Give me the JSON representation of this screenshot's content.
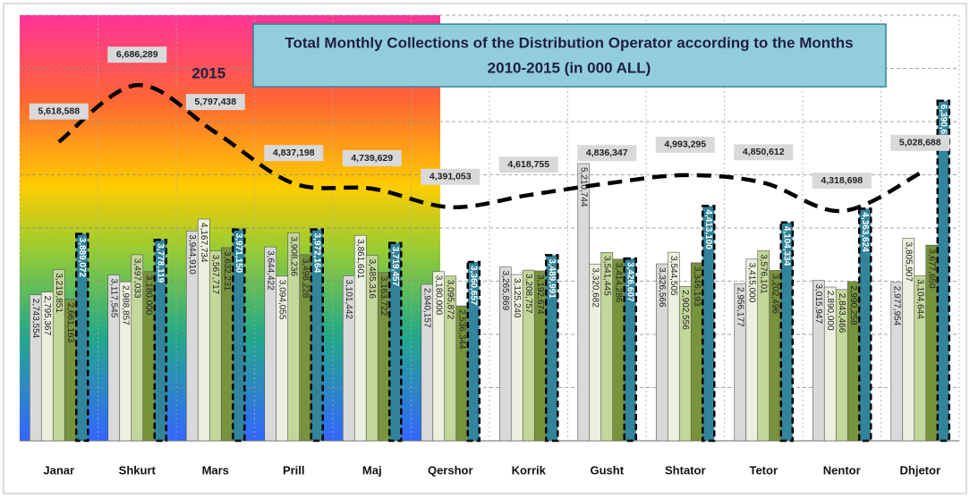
{
  "chart_data": {
    "type": "bar",
    "title": "Total Monthly Collections of the Distribution Operator according to the Months",
    "subtitle": "2010-2015 (in  000 ALL)",
    "annotation": "2015",
    "categories": [
      "Janar",
      "Shkurt",
      "Mars",
      "Prill",
      "Maj",
      "Qershor",
      "Korrik",
      "Gusht",
      "Shtator",
      "Tetor",
      "Nentor",
      "Dhjetor"
    ],
    "ylim": [
      0,
      8000000
    ],
    "yticks": [
      0,
      1000000,
      2000000,
      3000000,
      4000000,
      5000000,
      6000000,
      7000000,
      8000000
    ],
    "grid": true,
    "series": [
      {
        "color": "#d9d9d9",
        "values": [
          2743554,
          3117545,
          3944910,
          3644422,
          3101442,
          2940157,
          3265869,
          5210744,
          3326566,
          2956177,
          3015947,
          2977954
        ],
        "value_labels": [
          "2,743,554",
          "3,117,545",
          "3,944,910",
          "3,644,422",
          "3,101,442",
          "2,940,157",
          "3,265,869",
          "5,210,744",
          "3,326,566",
          "2,956,177",
          "3,015,947",
          "2,977,954"
        ]
      },
      {
        "color": "#ebf1de",
        "values": [
          2795367,
          2988857,
          4167734,
          3094055,
          3861601,
          3180000,
          3125240,
          3320682,
          3544505,
          3415000,
          2890000,
          3805907
        ],
        "value_labels": [
          "2,795,367",
          "2,988,857",
          "4,167,734",
          "3,094,055",
          "3,861,601",
          "3,180,000",
          "3,125,240",
          "3,320,682",
          "3,544,505",
          "3,415,000",
          "2,890,000",
          "3,805,907"
        ]
      },
      {
        "color": "#c4d79b",
        "values": [
          3219851,
          3497033,
          3567717,
          3908236,
          3485316,
          3095872,
          3208757,
          3541445,
          2902556,
          3576101,
          2843466,
          3104644
        ],
        "value_labels": [
          "3,219,851",
          "3,497,033",
          "3,567,717",
          "3,908,236",
          "3,485,316",
          "3,095,872",
          "3,208,757",
          "3,541,445",
          "2,902,556",
          "3,576,101",
          "2,843,466",
          "3,104,644"
        ]
      },
      {
        "color": "#77933c",
        "values": [
          2661163,
          3180000,
          3632231,
          3498228,
          3163722,
          2536344,
          3192674,
          3414286,
          3346193,
          3202496,
          2990258,
          3677650
        ],
        "value_labels": [
          "2,661,163",
          "3,180,000",
          "3,632,231",
          "3,498,228",
          "3,163,722",
          "2,536,344",
          "3,192,674",
          "3,414,286",
          "3,346,193",
          "3,202,496",
          "2,990,258",
          "3,677,650"
        ]
      },
      {
        "color": "#31849b",
        "values": [
          3889072,
          3778119,
          3971150,
          3972164,
          3719457,
          3360657,
          3489991,
          3426607,
          4413100,
          4104334,
          4363624,
          6390653
        ],
        "value_labels": [
          "3,889,072",
          "3,778,119",
          "3,971,150",
          "3,972,164",
          "3,719,457",
          "3,360,657",
          "3,489,991",
          "3,426,607",
          "4,413,100",
          "4,104,334",
          "4,363,624",
          "6,390,653"
        ]
      },
      {
        "type": "line",
        "color": "#000000",
        "values": [
          5618588,
          6686289,
          5797438,
          4837198,
          4739629,
          4391053,
          4618755,
          4836347,
          4993295,
          4850612,
          4318698,
          5028688
        ],
        "value_labels": [
          "5,618,588",
          "6,686,289",
          "5,797,438",
          "4,837,198",
          "4,739,629",
          "4,391,053",
          "4,618,755",
          "4,836,347",
          "4,993,295",
          "4,850,612",
          "4,318,698",
          "5,028,688"
        ]
      }
    ]
  }
}
